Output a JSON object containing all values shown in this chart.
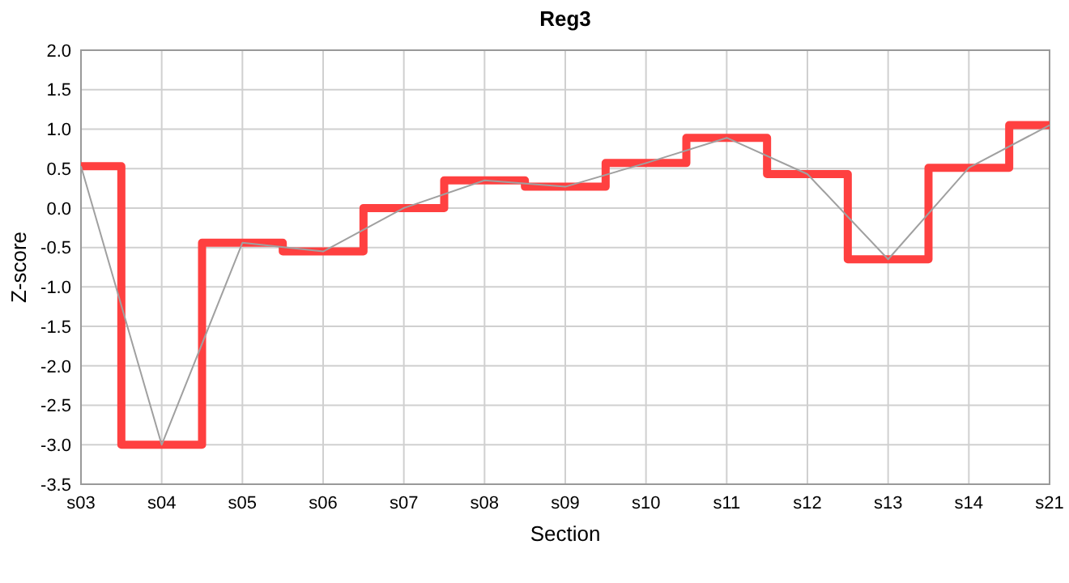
{
  "chart_data": {
    "type": "step",
    "title": "Reg3",
    "xlabel": "Section",
    "ylabel": "Z-score",
    "categories": [
      "s03",
      "s04",
      "s05",
      "s06",
      "s07",
      "s08",
      "s09",
      "s10",
      "s11",
      "s12",
      "s13",
      "s14",
      "s21"
    ],
    "series": [
      {
        "type": "step",
        "color": "#ff4040",
        "values": [
          0.53,
          -3.0,
          -0.44,
          -0.55,
          0.0,
          0.35,
          0.27,
          0.57,
          0.89,
          0.43,
          -0.65,
          0.51,
          1.05
        ]
      },
      {
        "type": "line",
        "color": "#a0a0a0",
        "values": [
          0.53,
          -3.0,
          -0.44,
          -0.55,
          0.0,
          0.35,
          0.27,
          0.57,
          0.89,
          0.43,
          -0.65,
          0.51,
          1.05
        ]
      }
    ],
    "ylim": [
      -3.5,
      2.0
    ],
    "yticks": [
      {
        "value": -3.5,
        "label": "-3.5"
      },
      {
        "value": -3,
        "label": "-3.0"
      },
      {
        "value": -2.5,
        "label": "-2.5"
      },
      {
        "value": -2,
        "label": "-2.0"
      },
      {
        "value": -1.5,
        "label": "-1.5"
      },
      {
        "value": -1,
        "label": "-1.0"
      },
      {
        "value": -0.5,
        "label": "-0.5"
      },
      {
        "value": 0,
        "label": "0.0"
      },
      {
        "value": 0.5,
        "label": "0.5"
      },
      {
        "value": 1,
        "label": "1.0"
      },
      {
        "value": 1.5,
        "label": "1.5"
      },
      {
        "value": 2,
        "label": "2.0"
      }
    ],
    "grid": true
  }
}
